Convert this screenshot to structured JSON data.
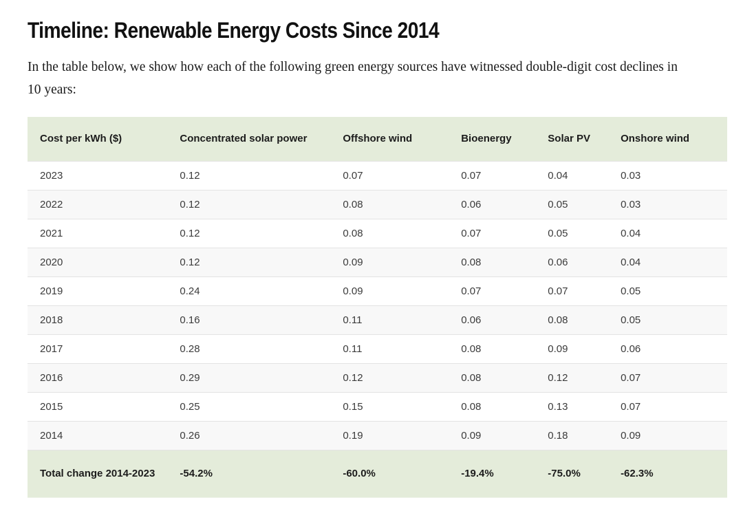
{
  "page": {
    "title": "Timeline: Renewable Energy Costs Since 2014",
    "intro": "In the table below, we show how each of the following green energy sources have witnessed double-digit cost declines in 10 years:"
  },
  "chart_data": {
    "type": "table",
    "title": "Timeline: Renewable Energy Costs Since 2014",
    "columns": [
      "Cost per kWh ($)",
      "Concentrated solar power",
      "Offshore wind",
      "Bioenergy",
      "Solar PV",
      "Onshore wind"
    ],
    "rows": [
      [
        "2023",
        "0.12",
        "0.07",
        "0.07",
        "0.04",
        "0.03"
      ],
      [
        "2022",
        "0.12",
        "0.08",
        "0.06",
        "0.05",
        "0.03"
      ],
      [
        "2021",
        "0.12",
        "0.08",
        "0.07",
        "0.05",
        "0.04"
      ],
      [
        "2020",
        "0.12",
        "0.09",
        "0.08",
        "0.06",
        "0.04"
      ],
      [
        "2019",
        "0.24",
        "0.09",
        "0.07",
        "0.07",
        "0.05"
      ],
      [
        "2018",
        "0.16",
        "0.11",
        "0.06",
        "0.08",
        "0.05"
      ],
      [
        "2017",
        "0.28",
        "0.11",
        "0.08",
        "0.09",
        "0.06"
      ],
      [
        "2016",
        "0.29",
        "0.12",
        "0.08",
        "0.12",
        "0.07"
      ],
      [
        "2015",
        "0.25",
        "0.15",
        "0.08",
        "0.13",
        "0.07"
      ],
      [
        "2014",
        "0.26",
        "0.19",
        "0.09",
        "0.18",
        "0.09"
      ]
    ],
    "footer": [
      "Total change 2014-2023",
      "-54.2%",
      "-60.0%",
      "-19.4%",
      "-75.0%",
      "-62.3%"
    ]
  },
  "colors": {
    "header_bg": "#e4ecda",
    "footer_bg": "#e4ecda",
    "stripe_bg": "#f8f8f8",
    "border": "#e3e3e3",
    "title_text": "#111111",
    "body_text": "#3b3b3b"
  }
}
